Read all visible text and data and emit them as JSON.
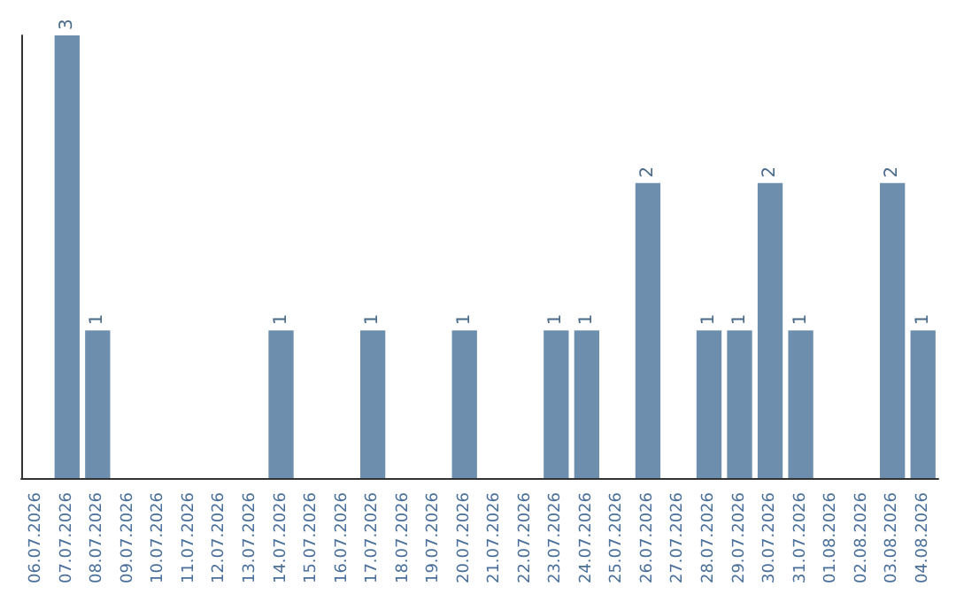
{
  "chart_data": {
    "type": "bar",
    "categories": [
      "06.07.2026",
      "07.07.2026",
      "08.07.2026",
      "09.07.2026",
      "10.07.2026",
      "11.07.2026",
      "12.07.2026",
      "13.07.2026",
      "14.07.2026",
      "15.07.2026",
      "16.07.2026",
      "17.07.2026",
      "18.07.2026",
      "19.07.2026",
      "20.07.2026",
      "21.07.2026",
      "22.07.2026",
      "23.07.2026",
      "24.07.2026",
      "25.07.2026",
      "26.07.2026",
      "27.07.2026",
      "28.07.2026",
      "29.07.2026",
      "30.07.2026",
      "31.07.2026",
      "01.08.2026",
      "02.08.2026",
      "03.08.2026",
      "04.08.2026"
    ],
    "values": [
      0,
      3,
      1,
      0,
      0,
      0,
      0,
      0,
      1,
      0,
      0,
      1,
      0,
      0,
      1,
      0,
      0,
      1,
      1,
      0,
      2,
      0,
      1,
      1,
      2,
      1,
      0,
      0,
      2,
      1
    ],
    "value_labels": [
      null,
      "3",
      "1",
      null,
      null,
      null,
      null,
      null,
      "1",
      null,
      null,
      "1",
      null,
      null,
      "1",
      null,
      null,
      "1",
      "1",
      null,
      "2",
      null,
      "1",
      "1",
      "2",
      "1",
      null,
      null,
      "2",
      "1"
    ],
    "color": "#6d8fad",
    "tick_labels": "x"
  }
}
